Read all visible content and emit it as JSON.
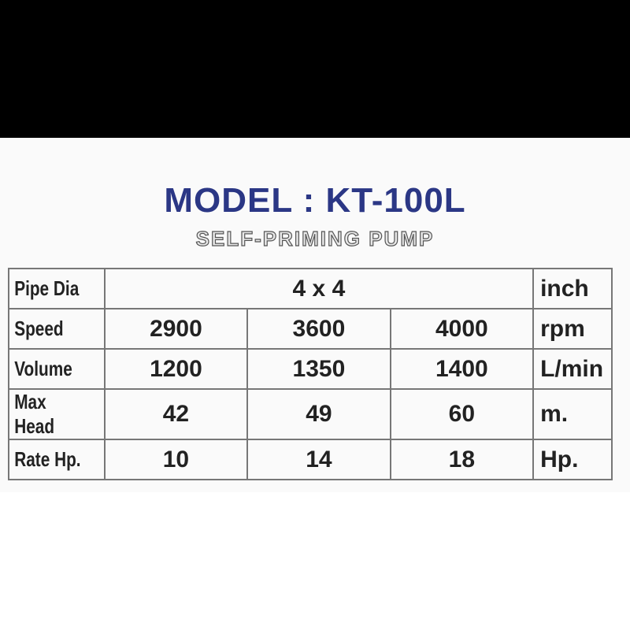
{
  "header": {
    "title": "MODEL : KT-100L",
    "subtitle": "SELF-PRIMING PUMP"
  },
  "table": {
    "rows": [
      [
        "Pipe Dia",
        "4 x 4",
        "inch"
      ],
      [
        "Speed",
        "2900",
        "3600",
        "4000",
        "rpm"
      ],
      [
        "Volume",
        "1200",
        "1350",
        "1400",
        "L/min"
      ],
      [
        "Max Head",
        "42",
        "49",
        "60",
        "m."
      ],
      [
        "Rate Hp.",
        "10",
        "14",
        "18",
        "Hp."
      ]
    ]
  }
}
